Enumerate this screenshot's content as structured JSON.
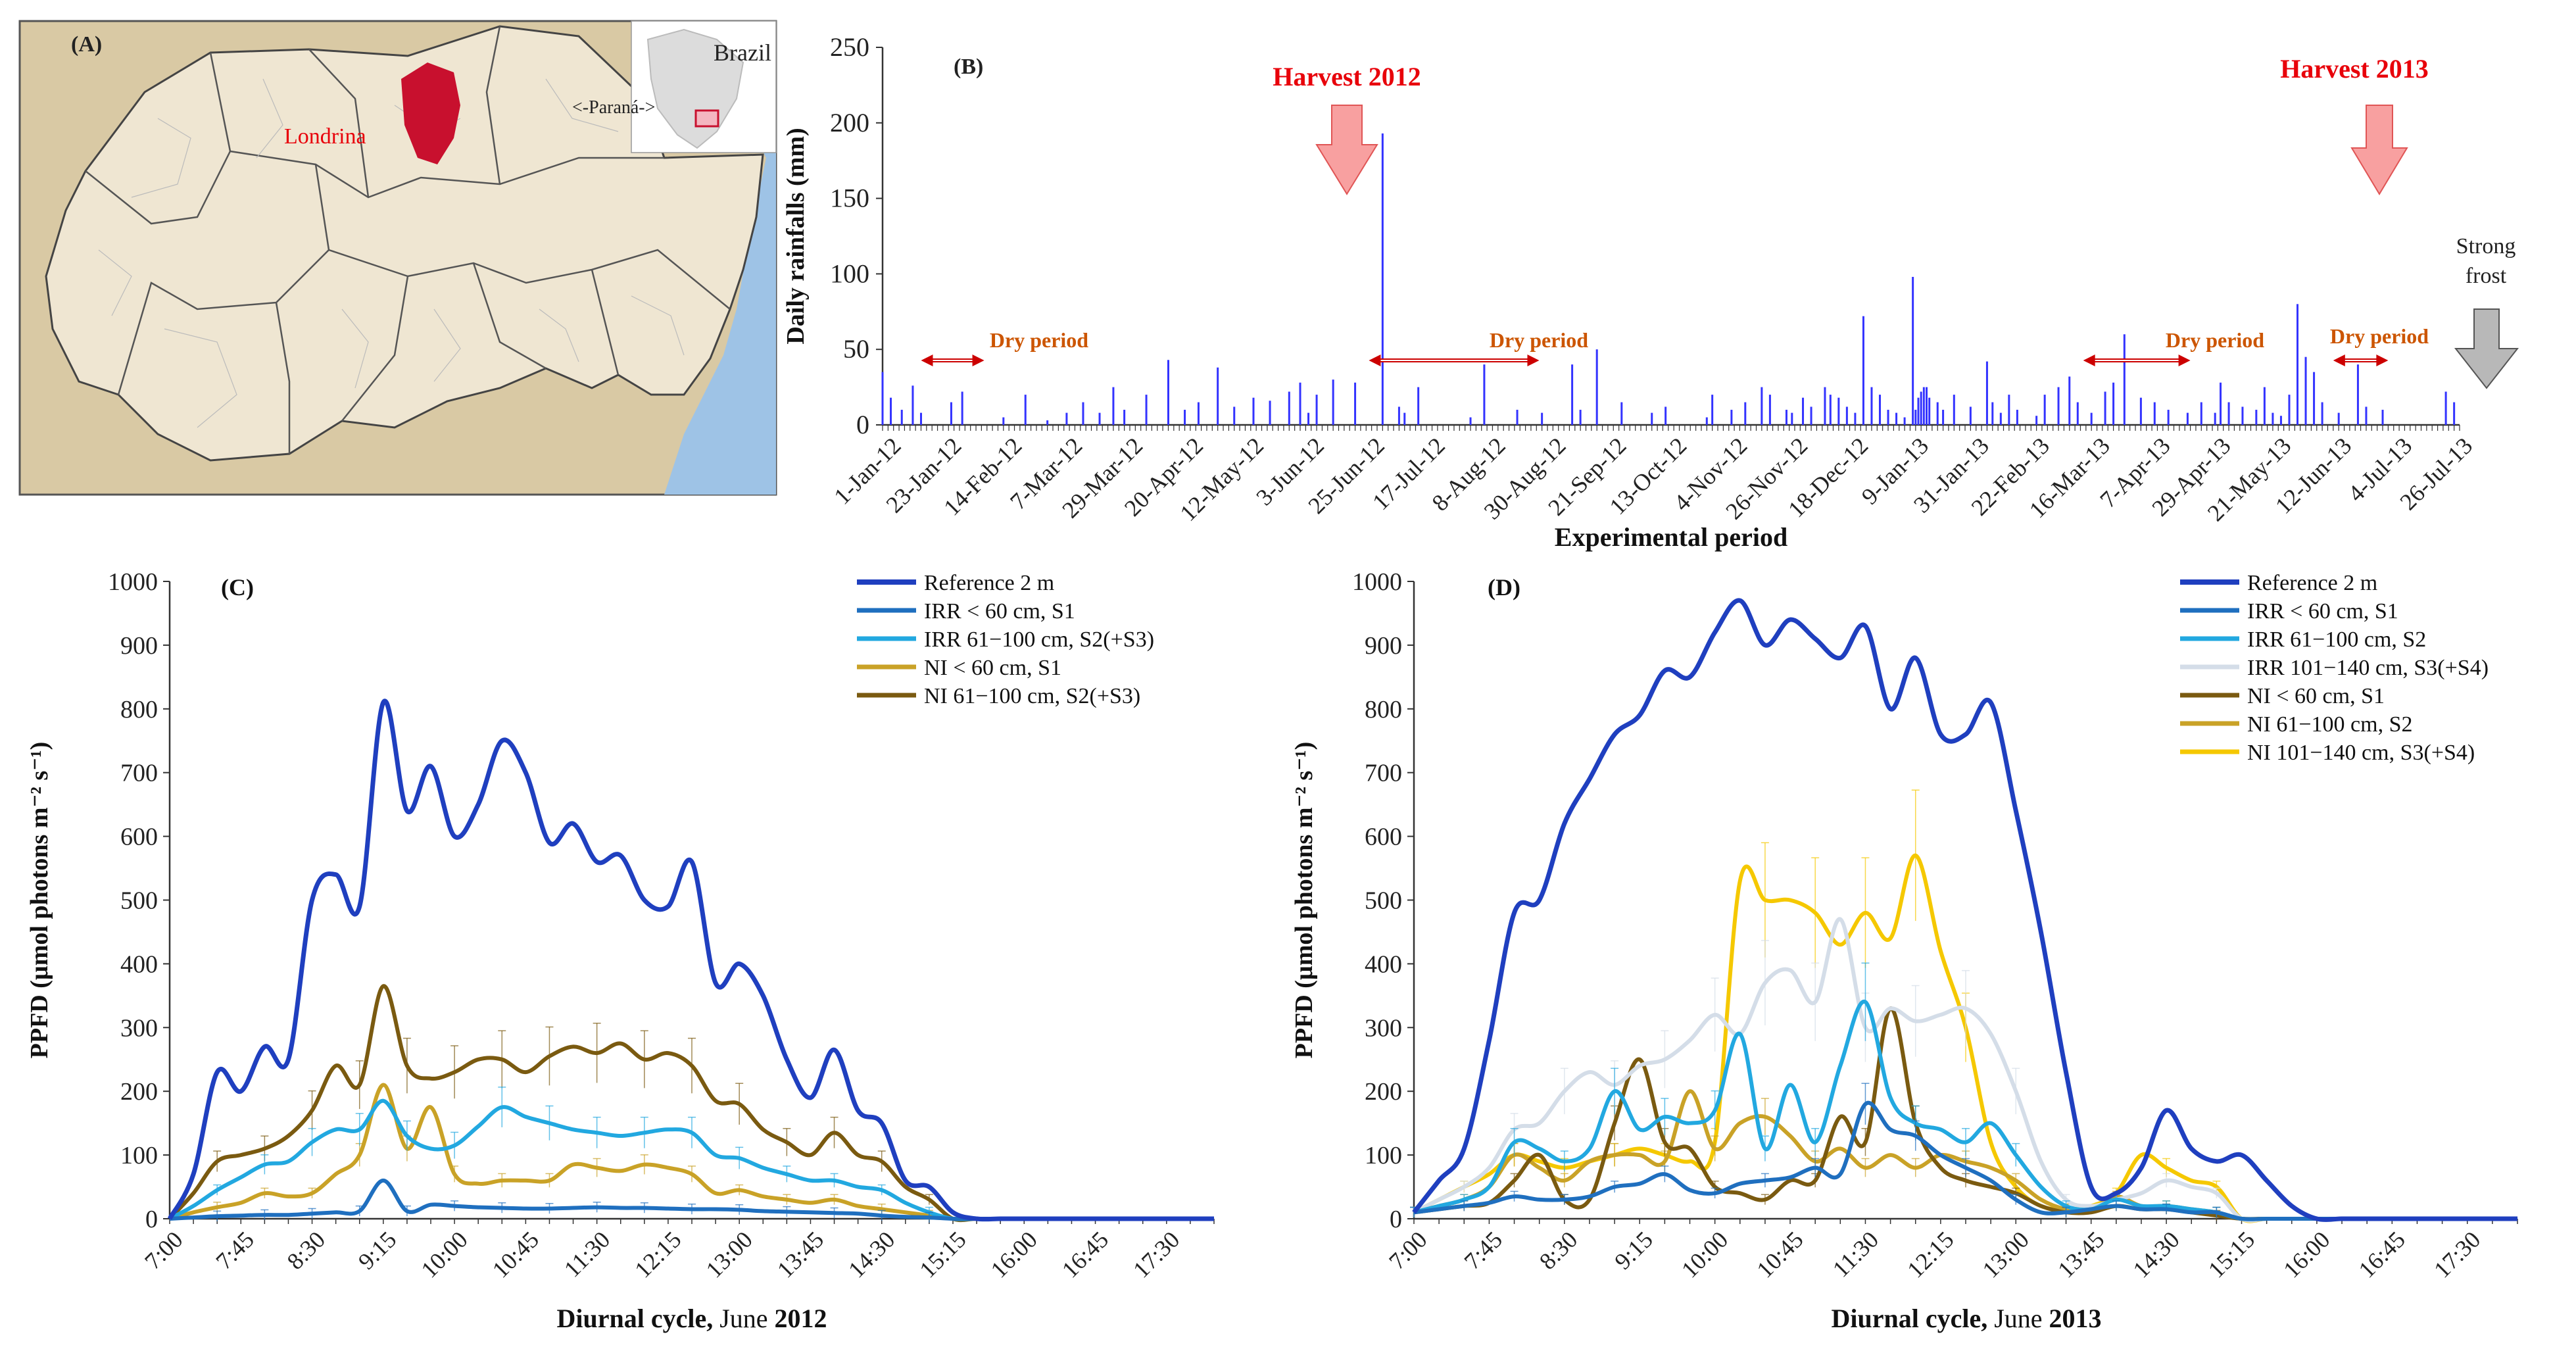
{
  "colors": {
    "ref": "#1f3fbf",
    "irr1": "#1f6fbf",
    "irr2": "#22a8e0",
    "irr3": "#d4dde8",
    "ni1_c": "#c9a227",
    "ni2_c": "#7a5a10",
    "ni1_d": "#7a5a10",
    "ni2_d": "#c9a227",
    "ni3_d": "#f5c800",
    "rain": "#3333ff",
    "red": "#e8000a",
    "arrow_pink": "#f8a0a0",
    "dry": "#cc5500",
    "frost": "#b8b8b8",
    "map_water": "#9ec3e6",
    "map_land": "#efe6d2",
    "map_outside": "#d9c9a4",
    "londrina": "#c8102e"
  },
  "panelA": {
    "label": "(A)",
    "country": "Brazil",
    "state": "<-Paraná->",
    "city": "Londrina"
  },
  "panelB": {
    "label": "(B)",
    "harvest_2012": "Harvest 2012",
    "harvest_2013": "Harvest 2013",
    "strong_frost": [
      "Strong",
      "frost"
    ],
    "dry_period": "Dry period"
  },
  "chart_data": [
    {
      "type": "bar",
      "panel": "B",
      "title": "",
      "xlabel": "Experimental period",
      "ylabel": "Daily rainfalls (mm)",
      "ylim": [
        0,
        250
      ],
      "yticks": [
        0,
        50,
        100,
        150,
        200,
        250
      ],
      "x_day_range": [
        0,
        574
      ],
      "categories": [
        "1-Jan-12",
        "23-Jan-12",
        "14-Feb-12",
        "7-Mar-12",
        "29-Mar-12",
        "20-Apr-12",
        "12-May-12",
        "3-Jun-12",
        "25-Jun-12",
        "17-Jul-12",
        "8-Aug-12",
        "30-Aug-12",
        "21-Sep-12",
        "13-Oct-12",
        "4-Nov-12",
        "26-Nov-12",
        "18-Dec-12",
        "9-Jan-13",
        "31-Jan-13",
        "22-Feb-13",
        "16-Mar-13",
        "7-Apr-13",
        "29-Apr-13",
        "21-May-13",
        "12-Jun-13",
        "4-Jul-13",
        "26-Jul-13"
      ],
      "rain_days": [
        0,
        3,
        7,
        11,
        14,
        25,
        29,
        44,
        52,
        60,
        67,
        73,
        79,
        84,
        88,
        96,
        104,
        110,
        115,
        122,
        128,
        135,
        141,
        148,
        152,
        155,
        158,
        164,
        172,
        182,
        188,
        190,
        195,
        214,
        219,
        231,
        240,
        251,
        254,
        260,
        269,
        280,
        285,
        300,
        302,
        309,
        314,
        320,
        323,
        329,
        331,
        335,
        338,
        343,
        345,
        348,
        351,
        354,
        357,
        360,
        363,
        366,
        369,
        372,
        375,
        376,
        377,
        378,
        379,
        380,
        381,
        384,
        386,
        390,
        396,
        402,
        404,
        407,
        410,
        413,
        420,
        423,
        428,
        432,
        435,
        440,
        445,
        448,
        452,
        458,
        463,
        468,
        475,
        480,
        485,
        487,
        490,
        495,
        500,
        503,
        506,
        509,
        512,
        515,
        518,
        521,
        524,
        530,
        537,
        540,
        546,
        569,
        572
      ],
      "rain_values": [
        35,
        18,
        10,
        26,
        8,
        15,
        22,
        5,
        20,
        3,
        8,
        15,
        8,
        25,
        10,
        20,
        43,
        10,
        15,
        38,
        12,
        18,
        16,
        22,
        28,
        8,
        20,
        30,
        28,
        193,
        12,
        8,
        25,
        5,
        40,
        10,
        8,
        40,
        10,
        50,
        15,
        8,
        12,
        5,
        20,
        10,
        15,
        25,
        20,
        10,
        8,
        18,
        12,
        25,
        20,
        18,
        12,
        8,
        72,
        25,
        20,
        10,
        8,
        5,
        98,
        10,
        18,
        22,
        25,
        25,
        18,
        15,
        10,
        20,
        12,
        42,
        15,
        8,
        20,
        10,
        6,
        20,
        25,
        32,
        15,
        8,
        22,
        28,
        60,
        18,
        15,
        10,
        8,
        15,
        8,
        28,
        15,
        12,
        10,
        25,
        8,
        6,
        20,
        80,
        45,
        35,
        15,
        8,
        40,
        12,
        10,
        22,
        15
      ],
      "annotations": {
        "harvest_2012": "Harvest 2012",
        "harvest_2013": "Harvest 2013",
        "dry_periods": [
          [
            14,
            37
          ],
          [
            177,
            239
          ],
          [
            437,
            476
          ],
          [
            528,
            548
          ]
        ],
        "frost": "Strong frost"
      }
    },
    {
      "type": "line",
      "panel": "C",
      "title": "(C)",
      "xlabel_bold": "Diurnal cycle,",
      "xlabel_rest": " June ",
      "xlabel_year": "2012",
      "ylabel": "PPFD (µmol photons m⁻² s⁻¹)",
      "ylim": [
        0,
        1000
      ],
      "yticks": [
        0,
        100,
        200,
        300,
        400,
        500,
        600,
        700,
        800,
        900,
        1000
      ],
      "x": [
        0,
        0.25,
        0.5,
        0.75,
        1,
        1.25,
        1.5,
        1.75,
        2,
        2.25,
        2.5,
        2.75,
        3,
        3.25,
        3.5,
        3.75,
        4,
        4.25,
        4.5,
        4.75,
        5,
        5.25,
        5.5,
        5.75,
        6,
        6.25,
        6.5,
        6.75,
        7,
        7.25,
        7.5,
        7.75,
        8,
        8.25,
        8.5,
        8.75,
        9,
        9.25,
        9.5,
        9.75,
        10,
        10.25,
        10.5,
        10.75,
        11
      ],
      "xlim": [
        0,
        11
      ],
      "x_ticks": [
        "7:00",
        "7:45",
        "8:30",
        "9:15",
        "10:00",
        "10:45",
        "11:30",
        "12:15",
        "13:00",
        "13:45",
        "14:30",
        "15:15",
        "16:00",
        "16:45",
        "17:30"
      ],
      "x_tick_pos": [
        0,
        0.75,
        1.5,
        2.25,
        3,
        3.75,
        4.5,
        5.25,
        6,
        6.75,
        7.5,
        8.25,
        9,
        9.75,
        10.5
      ],
      "series": [
        {
          "name": "Reference 2 m",
          "values": [
            0,
            70,
            230,
            200,
            270,
            250,
            500,
            540,
            490,
            810,
            640,
            710,
            600,
            650,
            750,
            700,
            590,
            620,
            560,
            570,
            500,
            490,
            560,
            370,
            400,
            350,
            250,
            190,
            265,
            170,
            150,
            60,
            50,
            10,
            0,
            0,
            0,
            0,
            0,
            0,
            0,
            0,
            0,
            0,
            0
          ]
        },
        {
          "name": "IRR < 60 cm, S1",
          "values": [
            0,
            2,
            4,
            5,
            6,
            6,
            8,
            10,
            12,
            60,
            12,
            22,
            20,
            18,
            17,
            16,
            16,
            17,
            18,
            17,
            17,
            16,
            15,
            15,
            14,
            12,
            11,
            10,
            9,
            8,
            5,
            3,
            2,
            0,
            0,
            0,
            0,
            0,
            0,
            0,
            0,
            0,
            0,
            0,
            0
          ]
        },
        {
          "name": "IRR 61−100 cm, S2(+S3)",
          "values": [
            0,
            20,
            45,
            65,
            85,
            90,
            120,
            140,
            140,
            185,
            130,
            110,
            115,
            145,
            175,
            160,
            150,
            140,
            135,
            130,
            135,
            140,
            135,
            100,
            95,
            80,
            70,
            60,
            60,
            50,
            45,
            25,
            10,
            0,
            0,
            0,
            0,
            0,
            0,
            0,
            0,
            0,
            0,
            0,
            0
          ]
        },
        {
          "name": "NI < 60 cm, S1",
          "values": [
            0,
            10,
            18,
            25,
            40,
            35,
            40,
            70,
            100,
            210,
            110,
            175,
            70,
            55,
            60,
            60,
            60,
            85,
            80,
            75,
            85,
            80,
            70,
            40,
            45,
            35,
            30,
            25,
            30,
            20,
            15,
            10,
            5,
            0,
            0,
            0,
            0,
            0,
            0,
            0,
            0,
            0,
            0,
            0,
            0
          ]
        },
        {
          "name": "NI 61−100 cm, S2(+S3)",
          "values": [
            0,
            40,
            90,
            100,
            110,
            130,
            170,
            240,
            210,
            365,
            240,
            220,
            230,
            250,
            250,
            230,
            255,
            270,
            260,
            275,
            250,
            260,
            240,
            185,
            180,
            140,
            120,
            100,
            135,
            100,
            90,
            50,
            30,
            0,
            0,
            0,
            0,
            0,
            0,
            0,
            0,
            0,
            0,
            0,
            0
          ]
        }
      ]
    },
    {
      "type": "line",
      "panel": "D",
      "title": "(D)",
      "xlabel_bold": "Diurnal cycle,",
      "xlabel_rest": " June ",
      "xlabel_year": "2013",
      "ylabel": "PPFD (µmol photons m⁻² s⁻¹)",
      "ylim": [
        0,
        1000
      ],
      "yticks": [
        0,
        100,
        200,
        300,
        400,
        500,
        600,
        700,
        800,
        900,
        1000
      ],
      "x": [
        0,
        0.25,
        0.5,
        0.75,
        1,
        1.25,
        1.5,
        1.75,
        2,
        2.25,
        2.5,
        2.75,
        3,
        3.25,
        3.5,
        3.75,
        4,
        4.25,
        4.5,
        4.75,
        5,
        5.25,
        5.5,
        5.75,
        6,
        6.25,
        6.5,
        6.75,
        7,
        7.25,
        7.5,
        7.75,
        8,
        8.25,
        8.5,
        8.75,
        9,
        9.25,
        9.5,
        9.75,
        10,
        10.25,
        10.5,
        10.75,
        11
      ],
      "xlim": [
        0,
        11
      ],
      "x_ticks": [
        "7:00",
        "7:45",
        "8:30",
        "9:15",
        "10:00",
        "10:45",
        "11:30",
        "12:15",
        "13:00",
        "13:45",
        "14:30",
        "15:15",
        "16:00",
        "16:45",
        "17:30"
      ],
      "x_tick_pos": [
        0,
        0.75,
        1.5,
        2.25,
        3,
        3.75,
        4.5,
        5.25,
        6,
        6.75,
        7.5,
        8.25,
        9,
        9.75,
        10.5
      ],
      "series": [
        {
          "name": "Reference 2 m",
          "values": [
            10,
            60,
            110,
            280,
            480,
            500,
            620,
            690,
            760,
            790,
            860,
            850,
            920,
            970,
            900,
            940,
            910,
            880,
            930,
            800,
            880,
            760,
            760,
            810,
            640,
            450,
            230,
            50,
            40,
            80,
            170,
            110,
            90,
            100,
            60,
            20,
            0,
            0,
            0,
            0,
            0,
            0,
            0,
            0,
            0
          ]
        },
        {
          "name": "IRR < 60 cm, S1",
          "values": [
            10,
            15,
            20,
            25,
            35,
            30,
            30,
            35,
            50,
            55,
            70,
            45,
            40,
            55,
            60,
            65,
            80,
            70,
            180,
            140,
            130,
            100,
            80,
            60,
            30,
            10,
            10,
            15,
            20,
            15,
            15,
            10,
            10,
            0,
            0,
            0,
            0,
            0,
            0,
            0,
            0,
            0,
            0,
            0,
            0
          ]
        },
        {
          "name": "IRR 61−100 cm, S2",
          "values": [
            10,
            20,
            30,
            50,
            120,
            110,
            90,
            110,
            200,
            140,
            160,
            150,
            170,
            290,
            110,
            210,
            120,
            240,
            340,
            190,
            150,
            140,
            120,
            150,
            100,
            50,
            20,
            15,
            30,
            20,
            20,
            15,
            10,
            0,
            0,
            0,
            0,
            0,
            0,
            0,
            0,
            0,
            0,
            0,
            0
          ]
        },
        {
          "name": "IRR 101−140 cm, S3(+S4)",
          "values": [
            10,
            30,
            50,
            80,
            140,
            150,
            200,
            230,
            210,
            240,
            250,
            280,
            320,
            290,
            370,
            390,
            340,
            470,
            300,
            330,
            310,
            320,
            330,
            290,
            200,
            90,
            30,
            20,
            30,
            40,
            60,
            50,
            40,
            0,
            0,
            0,
            0,
            0,
            0,
            0,
            0,
            0,
            0,
            0,
            0
          ]
        },
        {
          "name": "NI < 60 cm, S1",
          "values": [
            10,
            15,
            20,
            25,
            60,
            100,
            30,
            30,
            150,
            250,
            120,
            110,
            50,
            40,
            30,
            60,
            60,
            160,
            120,
            330,
            150,
            80,
            60,
            50,
            40,
            20,
            10,
            10,
            20,
            15,
            15,
            10,
            5,
            0,
            0,
            0,
            0,
            0,
            0,
            0,
            0,
            0,
            0,
            0,
            0
          ]
        },
        {
          "name": "NI 61−100 cm, S2",
          "values": [
            10,
            20,
            30,
            50,
            100,
            80,
            60,
            90,
            100,
            100,
            90,
            200,
            110,
            150,
            160,
            130,
            90,
            110,
            80,
            100,
            80,
            100,
            90,
            80,
            60,
            30,
            15,
            15,
            35,
            20,
            20,
            15,
            10,
            0,
            0,
            0,
            0,
            0,
            0,
            0,
            0,
            0,
            0,
            0,
            0
          ]
        },
        {
          "name": "NI 101−140 cm, S3(+S4)",
          "values": [
            10,
            30,
            50,
            70,
            100,
            90,
            80,
            90,
            100,
            110,
            100,
            90,
            120,
            530,
            500,
            500,
            480,
            430,
            480,
            440,
            570,
            420,
            300,
            120,
            50,
            20,
            15,
            20,
            40,
            100,
            80,
            60,
            50,
            0,
            0,
            0,
            0,
            0,
            0,
            0,
            0,
            0,
            0,
            0,
            0
          ]
        }
      ]
    }
  ]
}
